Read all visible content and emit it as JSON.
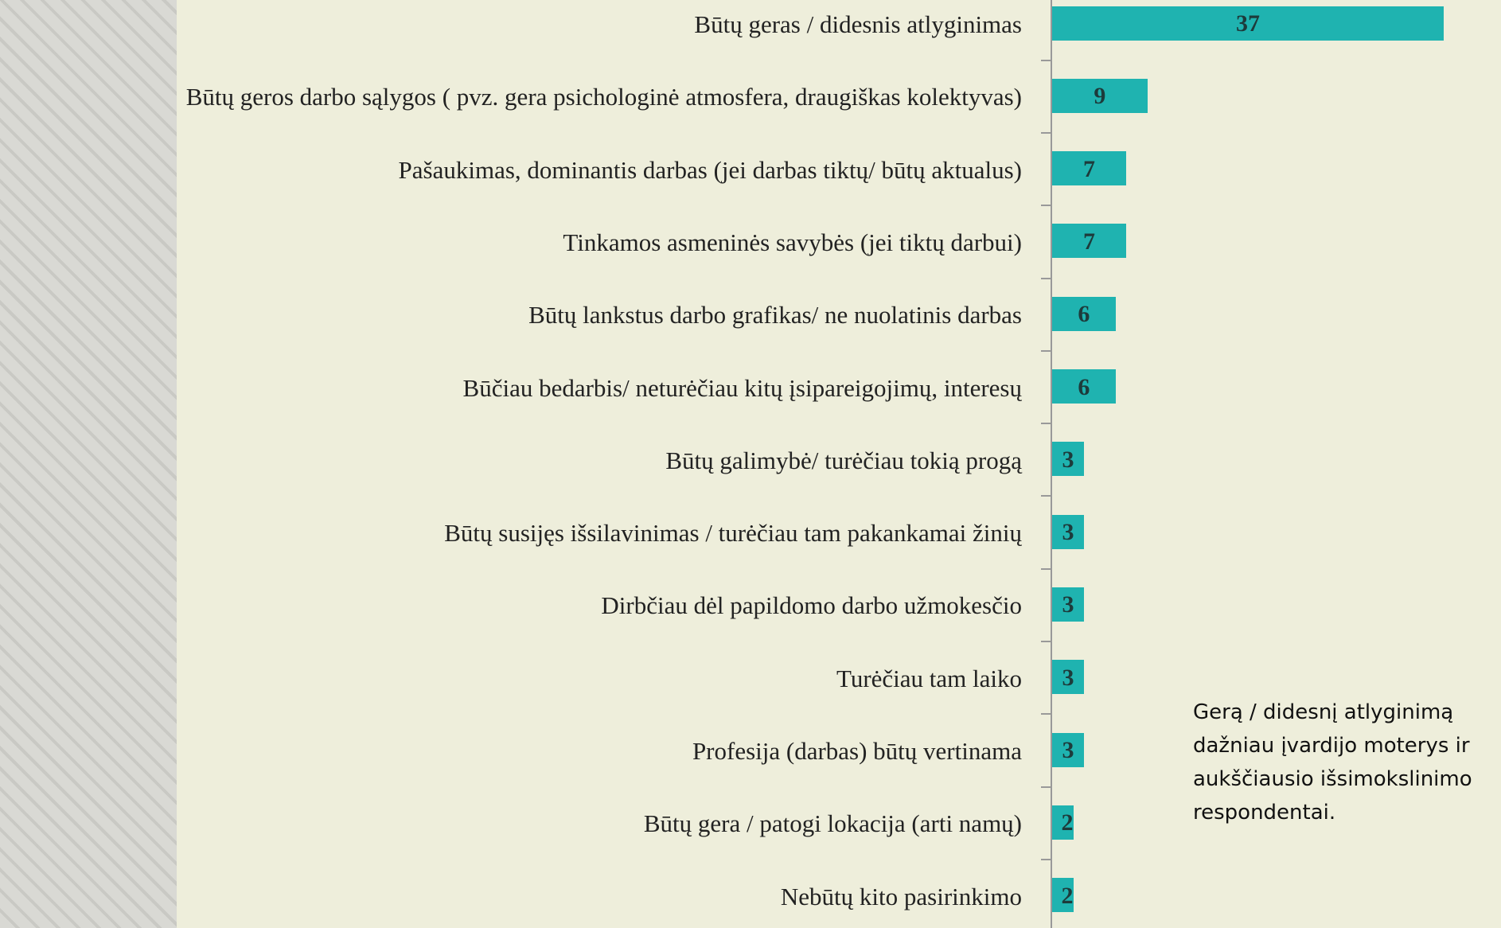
{
  "chart_data": {
    "type": "bar",
    "categories": [
      "Būtų geras / didesnis atlyginimas",
      "Būtų geros darbo sąlygos ( pvz. gera psichologinė atmosfera, draugiškas kolektyvas)",
      "Pašaukimas, dominantis darbas (jei darbas tiktų/ būtų aktualus)",
      "Tinkamos asmeninės savybės (jei tiktų darbui)",
      "Būtų lankstus darbo grafikas/ ne nuolatinis darbas",
      "Būčiau bedarbis/ neturėčiau kitų įsipareigojimų, interesų",
      "Būtų galimybė/ turėčiau tokią progą",
      "Būtų susijęs išsilavinimas / turėčiau tam pakankamai žinių",
      "Dirbčiau dėl papildomo darbo užmokesčio",
      "Turėčiau tam laiko",
      "Profesija (darbas) būtų vertinama",
      "Būtų gera / patogi lokacija (arti namų)",
      "Nebūtų kito pasirinkimo"
    ],
    "values": [
      37,
      9,
      7,
      7,
      6,
      6,
      3,
      3,
      3,
      3,
      3,
      2,
      2
    ],
    "color": "#1fb3b0",
    "annotation": "Gerą / didesnį atlyginimą dažniau įvardijo moterys ir aukščiausio išsimokslinimo respondentai."
  }
}
